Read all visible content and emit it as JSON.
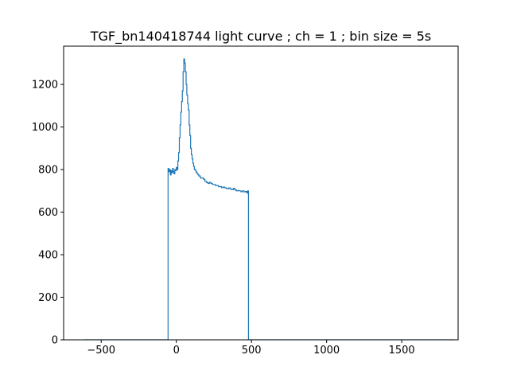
{
  "chart_data": {
    "type": "line",
    "title": "TGF_bn140418744 light curve ; ch = 1 ; bin size = 5s",
    "xlabel": "",
    "ylabel": "",
    "xlim": [
      -750,
      1875
    ],
    "ylim": [
      0,
      1380
    ],
    "xticks": [
      -500,
      0,
      500,
      1000,
      1500
    ],
    "xtick_labels": [
      "−500",
      "0",
      "500",
      "1000",
      "1500"
    ],
    "yticks": [
      0,
      200,
      400,
      600,
      800,
      1000,
      1200
    ],
    "ytick_labels": [
      "0",
      "200",
      "400",
      "600",
      "800",
      "1000",
      "1200"
    ],
    "grid": false,
    "legend": "none",
    "line_color": "#1f77b4",
    "drawstyle": "steps",
    "series": [
      {
        "x": [
          -620,
          -55,
          -55,
          -50,
          -45,
          -40,
          -35,
          -30,
          -25,
          -20,
          -15,
          -10,
          -5,
          0,
          5,
          10,
          15,
          20,
          25,
          30,
          35,
          40,
          45,
          50,
          55,
          60,
          65,
          70,
          75,
          80,
          85,
          90,
          95,
          100,
          105,
          110,
          115,
          120,
          125,
          130,
          135,
          140,
          145,
          150,
          160,
          170,
          180,
          190,
          200,
          210,
          220,
          230,
          240,
          250,
          260,
          270,
          280,
          290,
          300,
          310,
          320,
          330,
          340,
          350,
          360,
          370,
          380,
          390,
          400,
          410,
          420,
          430,
          440,
          450,
          460,
          470,
          475,
          480,
          480,
          1850
        ],
        "y": [
          0,
          0,
          805,
          790,
          800,
          775,
          795,
          785,
          805,
          790,
          780,
          800,
          795,
          810,
          800,
          840,
          880,
          950,
          1010,
          1070,
          1120,
          1170,
          1260,
          1320,
          1300,
          1260,
          1200,
          1150,
          1110,
          1080,
          1010,
          960,
          900,
          870,
          850,
          830,
          815,
          800,
          800,
          790,
          785,
          780,
          775,
          770,
          760,
          760,
          755,
          745,
          740,
          735,
          740,
          735,
          730,
          730,
          725,
          725,
          720,
          720,
          715,
          718,
          715,
          712,
          710,
          714,
          708,
          706,
          712,
          704,
          700,
          702,
          700,
          696,
          700,
          695,
          697,
          690,
          700,
          700,
          0,
          0
        ]
      }
    ]
  }
}
